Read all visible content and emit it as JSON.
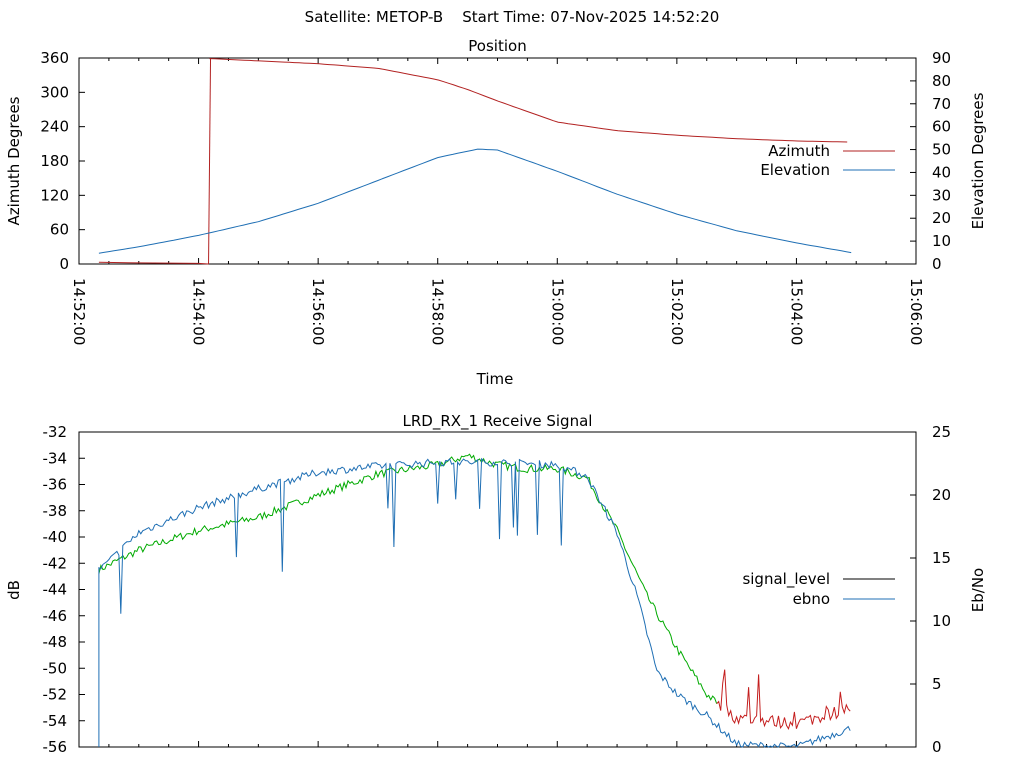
{
  "page": {
    "title": "Satellite: METOP-B    Start Time: 07-Nov-2025 14:52:20"
  },
  "colors": {
    "azimuth": "#b22222",
    "elevation": "#1f6fb4",
    "signal_level": "#000000",
    "ebno": "#1f6fb4",
    "signal_green": "#00aa00",
    "signal_red": "#c41e1e"
  },
  "chart_data": [
    {
      "type": "line",
      "title": "Position",
      "xlabel": "Time",
      "ylabel": "Azimuth Degrees",
      "y2label": "Elevation Degrees",
      "xlim": [
        "14:52:00",
        "15:06:00"
      ],
      "ylim": [
        0,
        360
      ],
      "y2lim": [
        0,
        90
      ],
      "x_ticks": [
        "14:52:00",
        "14:54:00",
        "14:56:00",
        "14:58:00",
        "15:00:00",
        "15:02:00",
        "15:04:00",
        "15:06:00"
      ],
      "y_ticks": [
        "0",
        "60",
        "120",
        "180",
        "240",
        "300",
        "360"
      ],
      "y2_ticks": [
        "0",
        "10",
        "20",
        "30",
        "40",
        "50",
        "60",
        "70",
        "80",
        "90"
      ],
      "legend_position": "right",
      "series": [
        {
          "name": "Azimuth",
          "axis": "y",
          "x": [
            "14:52:20",
            "14:53:00",
            "14:54:00",
            "14:54:10",
            "14:54:11",
            "14:55:00",
            "14:56:00",
            "14:57:00",
            "14:58:00",
            "14:58:30",
            "14:59:00",
            "15:00:00",
            "15:01:00",
            "15:02:00",
            "15:03:00",
            "15:04:00",
            "15:04:55"
          ],
          "values": [
            3,
            2,
            1,
            0,
            359,
            355,
            350,
            342,
            322,
            305,
            285,
            248,
            233,
            225,
            219,
            215,
            213
          ]
        },
        {
          "name": "Elevation",
          "axis": "y2",
          "x": [
            "14:52:20",
            "14:53:00",
            "14:54:00",
            "14:55:00",
            "14:56:00",
            "14:57:00",
            "14:58:00",
            "14:58:40",
            "14:59:00",
            "15:00:00",
            "15:01:00",
            "15:02:00",
            "15:03:00",
            "15:04:00",
            "15:04:55"
          ],
          "values": [
            4.7,
            7.5,
            12.5,
            18.5,
            26.5,
            36.5,
            46.5,
            50.2,
            49.8,
            40.5,
            30.5,
            21.8,
            14.5,
            9.2,
            5
          ]
        }
      ]
    },
    {
      "type": "line",
      "title": "LRD_RX_1 Receive Signal",
      "xlabel": "",
      "ylabel": "dB",
      "y2label": "Eb/No",
      "ylim": [
        -56,
        -32
      ],
      "y2lim": [
        0,
        25
      ],
      "y_ticks": [
        "-32",
        "-34",
        "-36",
        "-38",
        "-40",
        "-42",
        "-44",
        "-46",
        "-48",
        "-50",
        "-52",
        "-54",
        "-56"
      ],
      "y2_ticks": [
        "0",
        "5",
        "10",
        "15",
        "20",
        "25"
      ],
      "legend_position": "right",
      "series": [
        {
          "name": "signal_level",
          "axis": "y",
          "x": [
            "14:52:20",
            "14:53:00",
            "14:54:00",
            "14:55:00",
            "14:56:00",
            "14:57:00",
            "14:58:00",
            "14:58:30",
            "14:59:00",
            "14:59:30",
            "15:00:00",
            "15:00:30",
            "15:01:00",
            "15:01:30",
            "15:02:00",
            "15:02:30",
            "15:03:00",
            "15:04:00",
            "15:04:55"
          ],
          "values": [
            -42.5,
            -41,
            -39.5,
            -38.5,
            -36.8,
            -35.2,
            -34.5,
            -33.8,
            -34.5,
            -34.8,
            -34.8,
            -35.5,
            -39.5,
            -44.5,
            -48.5,
            -52,
            -53.8,
            -54.2,
            -53
          ]
        },
        {
          "name": "ebno",
          "axis": "y2",
          "x": [
            "14:52:20",
            "14:53:00",
            "14:54:00",
            "14:55:00",
            "14:56:00",
            "14:57:00",
            "14:58:00",
            "14:59:00",
            "15:00:00",
            "15:00:30",
            "15:01:00",
            "15:01:20",
            "15:01:40",
            "15:02:00",
            "15:02:30",
            "15:03:00",
            "15:04:00",
            "15:04:55"
          ],
          "values": [
            14,
            17,
            19,
            20.5,
            21.8,
            22.3,
            22.6,
            22.6,
            22.4,
            21.5,
            17,
            12,
            6,
            4.2,
            2.5,
            0.2,
            0,
            1.5
          ]
        }
      ]
    }
  ]
}
